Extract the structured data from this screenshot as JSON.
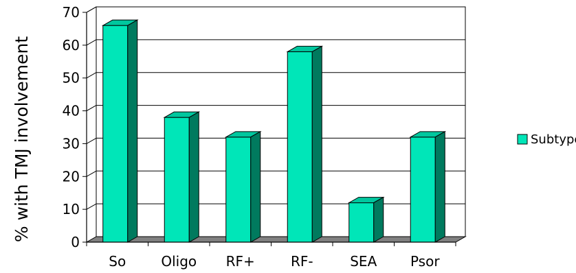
{
  "chart_data": {
    "type": "bar",
    "title": "",
    "xlabel": "",
    "ylabel": "% with TMJ involvement",
    "categories": [
      "So",
      "Oligo",
      "RF+",
      "RF-",
      "SEA",
      "Psor"
    ],
    "series": [
      {
        "name": "Subtype",
        "values": [
          66,
          38,
          32,
          58,
          12,
          32
        ]
      }
    ],
    "ylim": [
      0,
      70
    ],
    "yticks": [
      "0",
      "10",
      "20",
      "30",
      "40",
      "50",
      "60",
      "70"
    ],
    "grid": true,
    "three_d": true,
    "legend_position": "right",
    "colors": {
      "bar_front": "#00E6B8",
      "bar_side": "#007A5E",
      "bar_top": "#00C79E",
      "floor": "#808080",
      "gridline": "#000000"
    }
  }
}
